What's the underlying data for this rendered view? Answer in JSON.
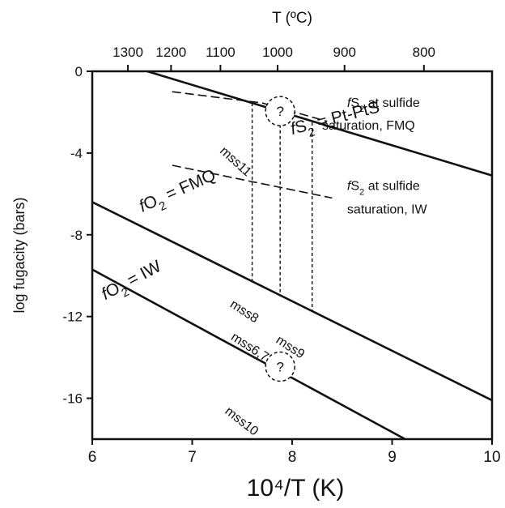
{
  "chart_data": {
    "type": "line",
    "xlabel": "10⁴/T  (K)",
    "ylabel": "log fugacity (bars)",
    "x2label": "T (ºC)",
    "xlim": [
      6,
      10
    ],
    "ylim": [
      -18,
      0
    ],
    "grid": false,
    "x_ticks": [
      6,
      7,
      8,
      9,
      10
    ],
    "y_ticks": [
      0,
      -4,
      -8,
      -12,
      -16
    ],
    "x2_ticks": [
      {
        "label": "1300",
        "T_C": 1300
      },
      {
        "label": "1200",
        "T_C": 1200
      },
      {
        "label": "1100",
        "T_C": 1100
      },
      {
        "label": "1000",
        "T_C": 1000
      },
      {
        "label": "900",
        "T_C": 900
      },
      {
        "label": "800",
        "T_C": 800
      }
    ],
    "series": [
      {
        "key": "pt-ptS",
        "style": "solid",
        "x": [
          6.55,
          10
        ],
        "y": [
          0,
          -5.1
        ]
      },
      {
        "key": "fmq",
        "style": "solid",
        "x": [
          6,
          10
        ],
        "y": [
          -6.4,
          -16.1
        ]
      },
      {
        "key": "iw",
        "style": "solid",
        "x": [
          6,
          9.13
        ],
        "y": [
          -9.7,
          -18
        ]
      },
      {
        "key": "fmq-saturation",
        "style": "dashed",
        "x": [
          6.8,
          7.7,
          8.35
        ],
        "y": [
          -1.0,
          -1.55,
          -2.45
        ]
      },
      {
        "key": "iw-saturation",
        "style": "dashed",
        "x": [
          6.8,
          7.5,
          8.4
        ],
        "y": [
          -4.6,
          -5.3,
          -6.2
        ]
      }
    ],
    "drop_lines": [
      {
        "x": 7.6,
        "y_top": -1.55,
        "y_bottom": -10.3
      },
      {
        "x": 7.88,
        "y_top": -2.05,
        "y_bottom": -10.9
      },
      {
        "x": 8.2,
        "y_top": -2.5,
        "y_bottom": -11.7
      }
    ],
    "circles": [
      {
        "x": 7.88,
        "y": -1.95,
        "text": "?"
      },
      {
        "x": 7.88,
        "y": -14.45,
        "text": "?"
      }
    ],
    "annotations": [
      {
        "key": "pt-ptS",
        "text_italic": "f",
        "text_main": "S",
        "text_sub": "2",
        "text_rest": " = Pt-PtS",
        "x": 8.0,
        "y": -3.1,
        "angle": 14.5,
        "size": "big"
      },
      {
        "key": "fmq",
        "text_italic": "f",
        "text_main": "O",
        "text_sub": "2",
        "text_rest": " = FMQ",
        "x": 6.5,
        "y": -6.9,
        "angle": 24,
        "size": "big"
      },
      {
        "key": "iw",
        "text_italic": "f",
        "text_main": "O",
        "text_sub": "2",
        "text_rest": " = IW",
        "x": 6.13,
        "y": -11.2,
        "angle": 28,
        "size": "big"
      },
      {
        "key": "fmq-sat-1",
        "text_italic": "f",
        "text_main": "S",
        "text_sub": "2",
        "text_rest": " at sulfide",
        "x": 8.55,
        "y": -1.75,
        "angle": 0,
        "size": "normal"
      },
      {
        "key": "fmq-sat-2",
        "text": "saturation, FMQ",
        "x": 8.3,
        "y": -2.85,
        "angle": 0,
        "size": "normal"
      },
      {
        "key": "iw-sat-1",
        "text_italic": "f",
        "text_main": "S",
        "text_sub": "2",
        "text_rest": " at sulfide",
        "x": 8.55,
        "y": -5.8,
        "angle": 0,
        "size": "normal"
      },
      {
        "key": "iw-sat-2",
        "text": "saturation, IW",
        "x": 8.55,
        "y": -6.95,
        "angle": 0,
        "size": "normal"
      },
      {
        "key": "mss11",
        "text": "mss11",
        "x": 7.27,
        "y": -3.95,
        "angle": -42,
        "size": "normal"
      },
      {
        "key": "mss8",
        "text": "mss8",
        "x": 7.37,
        "y": -11.5,
        "angle": -33,
        "size": "normal"
      },
      {
        "key": "mss6-7",
        "text": "mss6,7",
        "x": 7.38,
        "y": -13.1,
        "angle": -33,
        "size": "normal"
      },
      {
        "key": "mss9",
        "text": "mss9",
        "x": 7.83,
        "y": -13.25,
        "angle": -33,
        "size": "normal"
      },
      {
        "key": "mss10",
        "text": "mss10",
        "x": 7.32,
        "y": -16.7,
        "angle": -38,
        "size": "normal"
      }
    ]
  }
}
